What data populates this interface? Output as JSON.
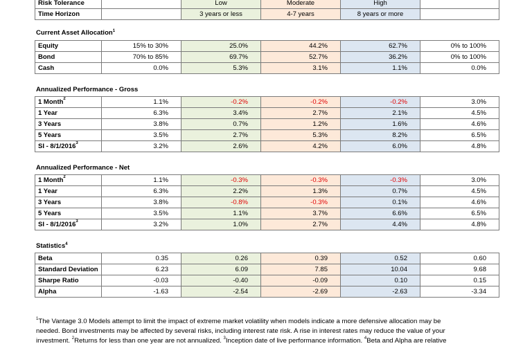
{
  "top": {
    "rows": [
      {
        "label": "Risk Tolerance",
        "values": [
          "",
          "Low",
          "Moderate",
          "High",
          ""
        ]
      },
      {
        "label": "Time Horizon",
        "values": [
          "",
          "3 years or less",
          "4-7 years",
          "8 years or more",
          ""
        ]
      }
    ]
  },
  "allocation": {
    "title": "Current Asset Allocation",
    "note": "1",
    "rows": [
      {
        "label": "Equity",
        "values": [
          "15% to 30%",
          "25.0%",
          "44.2%",
          "62.7%",
          "0% to 100%"
        ]
      },
      {
        "label": "Bond",
        "values": [
          "70% to 85%",
          "69.7%",
          "52.7%",
          "36.2%",
          "0% to 100%"
        ]
      },
      {
        "label": "Cash",
        "values": [
          "0.0%",
          "5.3%",
          "3.1%",
          "1.1%",
          "0.0%"
        ]
      }
    ]
  },
  "gross": {
    "title": "Annualized Performance - Gross",
    "rows": [
      {
        "label": "1 Month",
        "note": "2",
        "values": [
          "1.1%",
          "-0.2%",
          "-0.2%",
          "-0.2%",
          "3.0%"
        ]
      },
      {
        "label": "1 Year",
        "values": [
          "6.3%",
          "3.4%",
          "2.7%",
          "2.1%",
          "4.5%"
        ]
      },
      {
        "label": "3 Years",
        "values": [
          "3.8%",
          "0.7%",
          "1.2%",
          "1.6%",
          "4.6%"
        ]
      },
      {
        "label": "5 Years",
        "values": [
          "3.5%",
          "2.7%",
          "5.3%",
          "8.2%",
          "6.5%"
        ]
      },
      {
        "label": "SI - 8/1/2016",
        "note": "3",
        "values": [
          "3.2%",
          "2.6%",
          "4.2%",
          "6.0%",
          "4.8%"
        ]
      }
    ]
  },
  "net": {
    "title": "Annualized Performance - Net",
    "rows": [
      {
        "label": "1 Month",
        "note": "2",
        "values": [
          "1.1%",
          "-0.3%",
          "-0.3%",
          "-0.3%",
          "3.0%"
        ]
      },
      {
        "label": "1 Year",
        "values": [
          "6.3%",
          "2.2%",
          "1.3%",
          "0.7%",
          "4.5%"
        ]
      },
      {
        "label": "3 Years",
        "values": [
          "3.8%",
          "-0.8%",
          "-0.3%",
          "0.1%",
          "4.6%"
        ]
      },
      {
        "label": "5 Years",
        "values": [
          "3.5%",
          "1.1%",
          "3.7%",
          "6.6%",
          "6.5%"
        ]
      },
      {
        "label": "SI - 8/1/2016",
        "note": "3",
        "values": [
          "3.2%",
          "1.0%",
          "2.7%",
          "4.4%",
          "4.8%"
        ]
      }
    ]
  },
  "statistics": {
    "title": "Statistics",
    "note": "4",
    "rows": [
      {
        "label": "Beta",
        "values": [
          "0.35",
          "0.26",
          "0.39",
          "0.52",
          "0.60"
        ]
      },
      {
        "label": "Standard Deviation",
        "values": [
          "6.23",
          "6.09",
          "7.85",
          "10.04",
          "9.68"
        ]
      },
      {
        "label": "Sharpe Ratio",
        "values": [
          "-0.03",
          "-0.40",
          "-0.09",
          "0.10",
          "0.15"
        ]
      },
      {
        "label": "Alpha",
        "values": [
          "-1.63",
          "-2.54",
          "-2.69",
          "-2.63",
          "-3.34"
        ]
      }
    ]
  },
  "footnote": {
    "n1": "1",
    "line1": "The Vantage 3.0 Models attempt to limit the impact of extreme market volatility when models indicate a more defensive allocation may be",
    "line2": "needed. Bond investments may be affected by several risks, including interest rate risk. A rise in interest rates may reduce the value of your",
    "line3a": "investment.",
    "n2": "2",
    "line3b": "Returns for less than one year are not annualized.",
    "n3": "3",
    "line3c": "Inception date of live performance information.",
    "n4": "4",
    "line3d": "Beta and Alpha are relative"
  }
}
